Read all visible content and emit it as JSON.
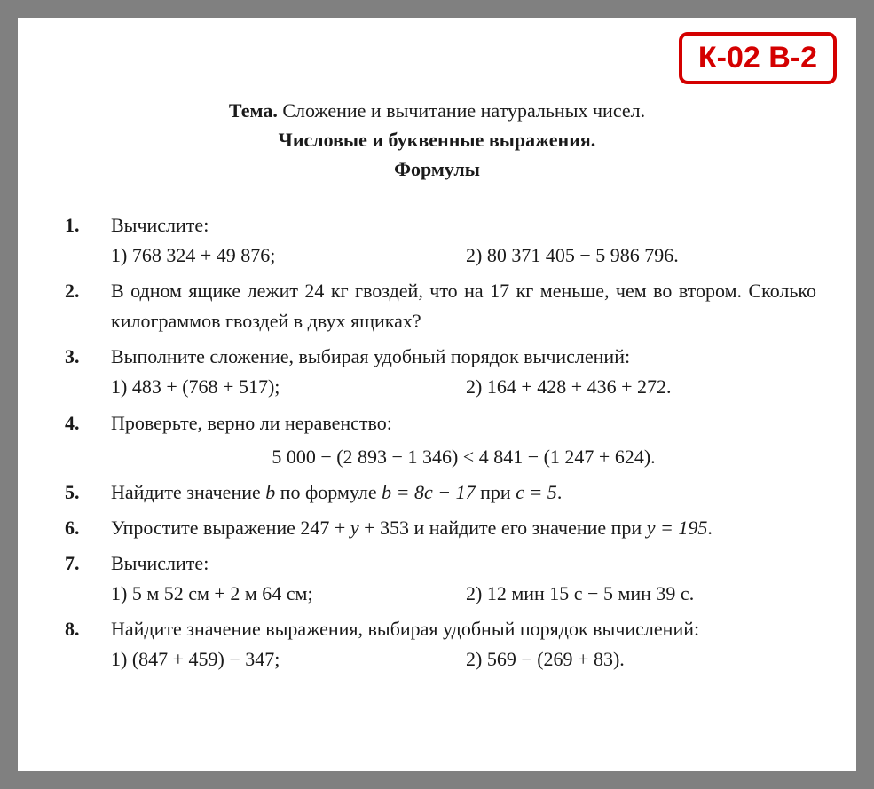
{
  "badge": "К-02 В-2",
  "title": {
    "topic_label": "Тема.",
    "line1": " Сложение и вычитание натуральных чисел.",
    "line2": "Числовые и буквенные выражения.",
    "line3": "Формулы"
  },
  "problems": [
    {
      "num": "1.",
      "text": "Вычислите:",
      "sub_a": "1) 768 324 + 49 876;",
      "sub_b": "2) 80 371 405 − 5 986 796."
    },
    {
      "num": "2.",
      "text": "В одном ящике лежит 24 кг гвоздей, что на 17 кг меньше, чем во втором. Сколько килограммов гвоздей в двух ящиках?"
    },
    {
      "num": "3.",
      "text": "Выполните сложение, выбирая удобный порядок вычислений:",
      "sub_a": "1) 483 + (768 + 517);",
      "sub_b": "2) 164 + 428 + 436 + 272."
    },
    {
      "num": "4.",
      "text": "Проверьте, верно ли неравенство:",
      "centered": "5 000 − (2 893 − 1 346) < 4 841 − (1 247 + 624)."
    },
    {
      "num": "5.",
      "text_before": "Найдите значение ",
      "var1": "b",
      "text_mid1": " по формуле ",
      "formula": "b = 8c − 17",
      "text_mid2": " при ",
      "cond": "c = 5",
      "text_after": "."
    },
    {
      "num": "6.",
      "text_before": "Упростите выражение 247 + ",
      "var1": "y",
      "text_mid1": " + 353 и найдите его значение при ",
      "cond": "y = 195",
      "text_after": "."
    },
    {
      "num": "7.",
      "text": "Вычислите:",
      "sub_a": "1) 5 м 52 см + 2 м 64 см;",
      "sub_b": "2) 12 мин 15 с − 5 мин 39 с."
    },
    {
      "num": "8.",
      "text": "Найдите значение выражения, выбирая удобный порядок вычислений:",
      "sub_a": "1) (847 + 459) − 347;",
      "sub_b": "2) 569 − (269 + 83)."
    }
  ]
}
